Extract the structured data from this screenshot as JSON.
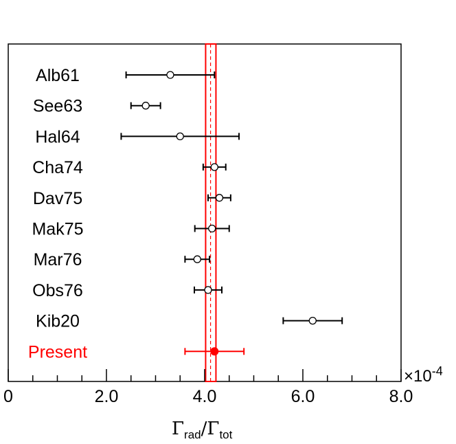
{
  "chart_data": {
    "type": "scatter",
    "title": "",
    "xlabel": {
      "symbol": "Γ",
      "numerator_sub": "rad",
      "separator": "/",
      "denominator_sub": "tot"
    },
    "xlim": [
      0,
      8.0
    ],
    "x_tick_labels": [
      "0",
      "2.0",
      "4.0",
      "6.0",
      "8.0"
    ],
    "x_ticks": [
      0,
      2.0,
      4.0,
      6.0,
      8.0
    ],
    "x_exponent_label": "×10",
    "x_exponent_power": "-4",
    "measurements": [
      {
        "label": "Alb61",
        "value": 3.3,
        "err_low": 0.9,
        "err_high": 0.9,
        "marker": "open"
      },
      {
        "label": "See63",
        "value": 2.8,
        "err_low": 0.3,
        "err_high": 0.3,
        "marker": "open"
      },
      {
        "label": "Hal64",
        "value": 3.5,
        "err_low": 1.2,
        "err_high": 1.2,
        "marker": "open"
      },
      {
        "label": "Cha74",
        "value": 4.2,
        "err_low": 0.23,
        "err_high": 0.23,
        "marker": "open"
      },
      {
        "label": "Dav75",
        "value": 4.3,
        "err_low": 0.23,
        "err_high": 0.23,
        "marker": "open"
      },
      {
        "label": "Mak75",
        "value": 4.15,
        "err_low": 0.35,
        "err_high": 0.35,
        "marker": "open"
      },
      {
        "label": "Mar76",
        "value": 3.85,
        "err_low": 0.25,
        "err_high": 0.25,
        "marker": "open"
      },
      {
        "label": "Obs76",
        "value": 4.07,
        "err_low": 0.28,
        "err_high": 0.28,
        "marker": "open"
      },
      {
        "label": "Kib20",
        "value": 6.2,
        "err_low": 0.6,
        "err_high": 0.6,
        "marker": "open"
      },
      {
        "label": "Present",
        "value": 4.2,
        "err_low": 0.6,
        "err_high": 0.6,
        "marker": "filled",
        "highlight": true
      }
    ],
    "band": {
      "center": 4.12,
      "low": 4.02,
      "high": 4.23
    },
    "colors": {
      "data": "#000000",
      "present": "#ff0000",
      "band": "#ff0000"
    }
  }
}
